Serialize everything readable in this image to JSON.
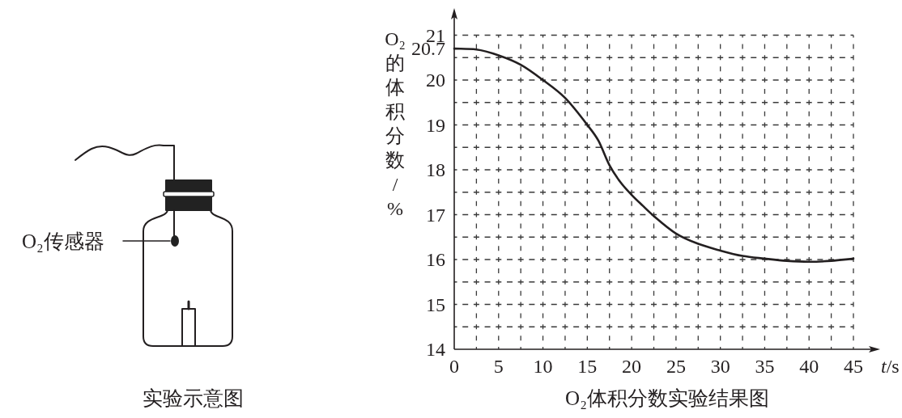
{
  "chart_data": {
    "type": "line",
    "title": "O₂体积分数实验结果图",
    "xlabel": "*t*/s",
    "ylabel": "O₂的体积分数/%",
    "annotations": [
      "O₂传感器",
      "实验示意图"
    ],
    "x": [
      0,
      2.5,
      5,
      7.5,
      10,
      12.5,
      15,
      16.25,
      17.5,
      18.75,
      20,
      21.25,
      22.5,
      25,
      27.5,
      30,
      32.5,
      35,
      37.5,
      40,
      42.5,
      45
    ],
    "values": [
      20.7,
      20.68,
      20.55,
      20.34,
      20.0,
      19.6,
      19.0,
      18.65,
      18.1,
      17.72,
      17.44,
      17.2,
      16.97,
      16.58,
      16.35,
      16.2,
      16.08,
      16.02,
      15.97,
      15.95,
      15.97,
      16.02
    ],
    "color": "#231f20",
    "xlim": [
      0,
      45
    ],
    "ylim": [
      14,
      21
    ],
    "xticks": [
      0,
      5,
      10,
      15,
      20,
      25,
      30,
      35,
      40,
      45
    ],
    "yticks": [
      14,
      15,
      16,
      17,
      18,
      19,
      20,
      20.7,
      21
    ],
    "grid": true
  }
}
